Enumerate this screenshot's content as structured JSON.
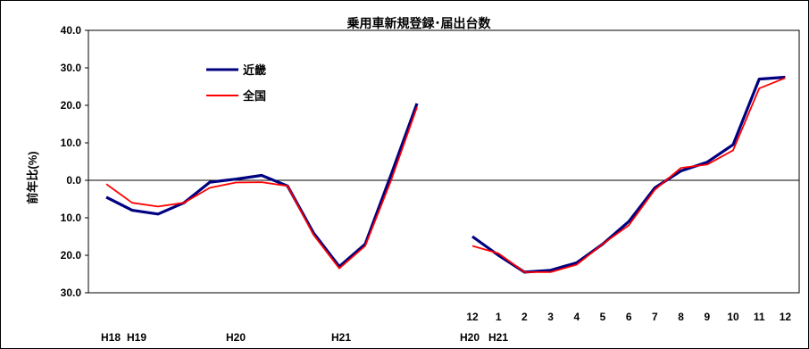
{
  "chart_data": {
    "type": "line",
    "title": "乗用車新規登録･届出台数",
    "ylabel": "前年比(%)",
    "ylim": [
      -30,
      40
    ],
    "y_ticks": [
      {
        "value": 40,
        "label": "40.0"
      },
      {
        "value": 30,
        "label": "30.0"
      },
      {
        "value": 20,
        "label": "20.0"
      },
      {
        "value": 10,
        "label": "10.0"
      },
      {
        "value": 0,
        "label": "0.0"
      },
      {
        "value": -10,
        "label": "10.0"
      },
      {
        "value": -20,
        "label": "20.0"
      },
      {
        "value": -30,
        "label": "30.0"
      }
    ],
    "zero_line": true,
    "grid": false,
    "legend_position": "upper-left",
    "colors": {
      "kinki": "#000080",
      "zenkoku": "#ff0000"
    },
    "x_labels_row1": [
      "12",
      "1",
      "2",
      "3",
      "4",
      "5",
      "6",
      "7",
      "8",
      "9",
      "10",
      "11",
      "12"
    ],
    "x_labels_row2": [
      "H18",
      "H19",
      "H20",
      "H21",
      "H20",
      "H21"
    ],
    "segments": [
      {
        "part": "yearly",
        "points": 13,
        "series": [
          {
            "name": "近畿",
            "values": [
              -4.5,
              -8.0,
              -9.0,
              -6.0,
              -0.5,
              0.3,
              1.3,
              -1.5,
              -14.0,
              -23.0,
              -17.0,
              1.5,
              20.5
            ]
          },
          {
            "name": "全国",
            "values": [
              -1.0,
              -6.0,
              -7.0,
              -6.0,
              -2.0,
              -0.6,
              -0.5,
              -1.5,
              -14.5,
              -23.5,
              -17.5,
              0.0,
              19.5
            ]
          }
        ]
      },
      {
        "part": "monthly",
        "points": 13,
        "series": [
          {
            "name": "近畿",
            "values": [
              -15.0,
              -20.0,
              -24.5,
              -24.0,
              -22.0,
              -17.0,
              -11.0,
              -2.0,
              2.5,
              4.8,
              9.5,
              27.0,
              27.5
            ]
          },
          {
            "name": "全国",
            "values": [
              -17.5,
              -19.5,
              -24.5,
              -24.5,
              -22.5,
              -17.0,
              -12.0,
              -2.5,
              3.3,
              4.2,
              8.0,
              24.5,
              27.3
            ]
          }
        ]
      }
    ]
  }
}
